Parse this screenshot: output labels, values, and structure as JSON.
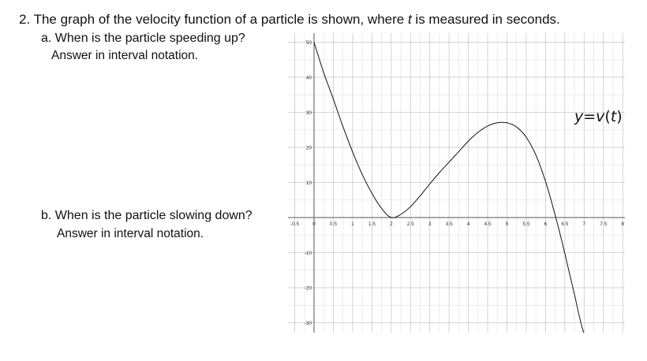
{
  "question": {
    "number_text": "2. The graph of the velocity function of a particle is shown, where ",
    "variable": "t",
    "rest_text": " is measured in seconds."
  },
  "part_a": {
    "label": "a. When is the particle speeding up?",
    "note": "Answer in interval notation."
  },
  "part_b": {
    "label": "b. When is the particle slowing down?",
    "note": "Answer in interval notation."
  },
  "function_label": {
    "y": "y",
    "eq": "=",
    "v": "v",
    "open": "(",
    "t": "t",
    "close": ")"
  },
  "chart_data": {
    "type": "line",
    "x_ticks": [
      "-0.5",
      "0",
      "0.5",
      "1",
      "1.5",
      "2",
      "2.5",
      "3",
      "3.5",
      "4",
      "4.5",
      "5",
      "5.5",
      "6",
      "6.5",
      "7",
      "7.5",
      "8"
    ],
    "y_ticks": [
      "50",
      "40",
      "30",
      "20",
      "10",
      "-10",
      "-20",
      "-30"
    ],
    "xlim": [
      -0.5,
      8.2
    ],
    "ylim": [
      -33,
      52
    ],
    "grid": true,
    "series": [
      {
        "name": "",
        "x": [
          0,
          0.25,
          0.5,
          0.75,
          1,
          1.25,
          1.5,
          1.75,
          2,
          2.25,
          2.5,
          2.75,
          3,
          3.25,
          3.5,
          3.75,
          4,
          4.25,
          4.5,
          4.75,
          5,
          5.25,
          5.5,
          5.75,
          6,
          6.25,
          6.5,
          6.75,
          7,
          7.25
        ],
        "y": [
          50,
          41.3,
          33.8,
          25.9,
          18.7,
          12.3,
          6.9,
          2.6,
          0,
          0.9,
          3.1,
          6.2,
          9.6,
          12.8,
          15.8,
          18.8,
          21.8,
          24.3,
          26.1,
          27,
          27,
          25.8,
          22.9,
          17.8,
          10.3,
          0.7,
          -10.2,
          -22,
          -33,
          -34
        ]
      }
    ]
  }
}
